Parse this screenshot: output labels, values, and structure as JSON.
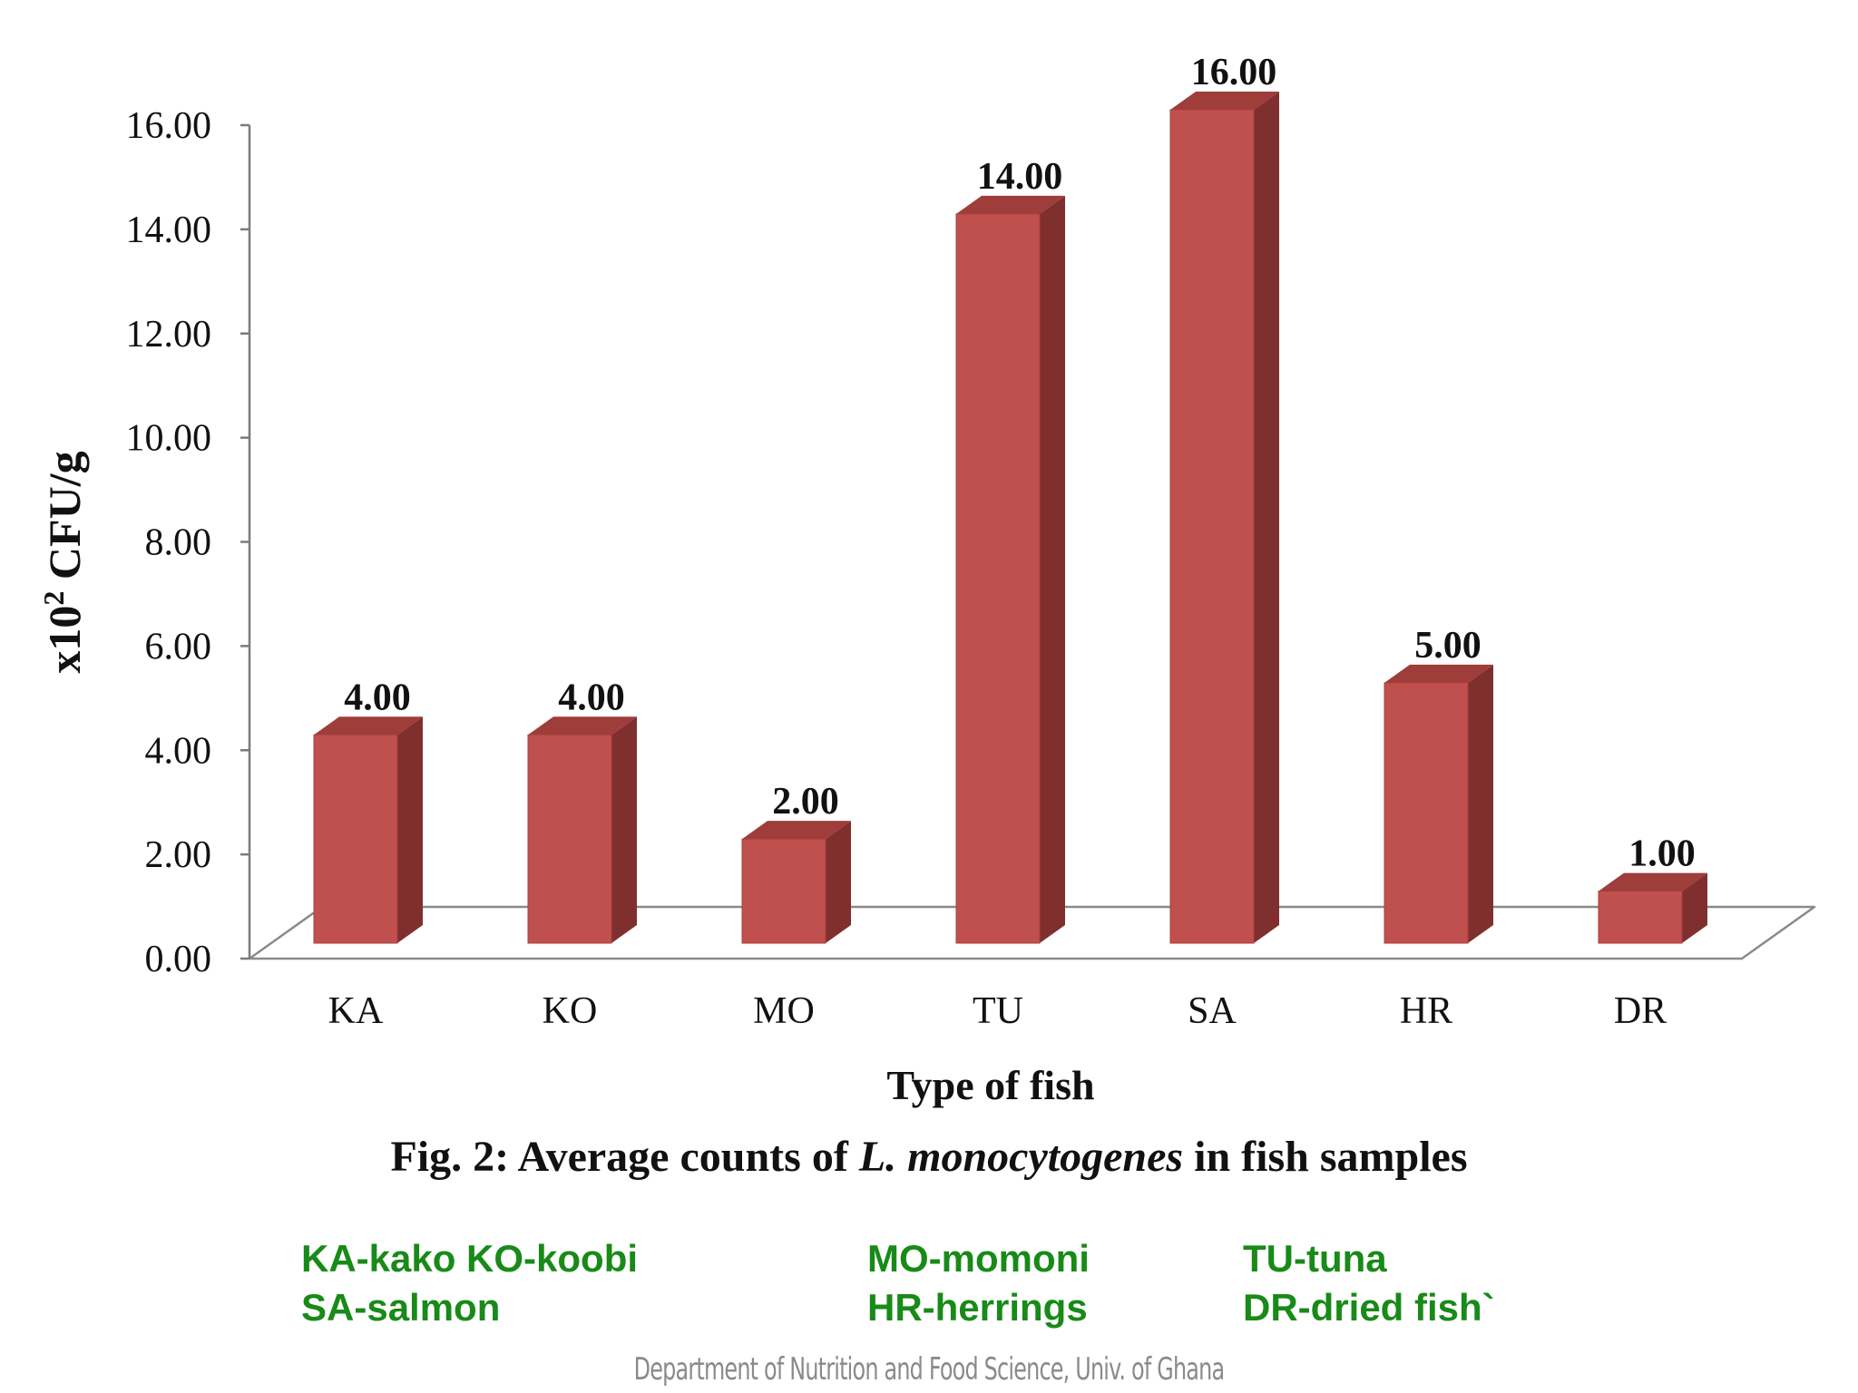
{
  "chart_data": {
    "type": "bar",
    "categories": [
      "KA",
      "KO",
      "MO",
      "TU",
      "SA",
      "HR",
      "DR"
    ],
    "values": [
      4.0,
      4.0,
      2.0,
      14.0,
      16.0,
      5.0,
      1.0
    ],
    "value_labels": [
      "4.00",
      "4.00",
      "2.00",
      "14.00",
      "16.00",
      "5.00",
      "1.00"
    ],
    "yticks": [
      "0.00",
      "2.00",
      "4.00",
      "6.00",
      "8.00",
      "10.00",
      "12.00",
      "14.00",
      "16.00"
    ],
    "ylim": [
      0,
      16
    ],
    "ylabel_prefix": "x10",
    "ylabel_exp": "2",
    "ylabel_suffix": " CFU/g",
    "xlabel": "Type of fish",
    "grid": false,
    "bar_color": "#c0504d",
    "bar_side_color": "#7f302e",
    "bar_top_color": "#9e3d3a"
  },
  "caption": {
    "prefix": "Fig. 2: Average counts of ",
    "italic": "L. monocytogenes",
    "suffix": " in fish samples"
  },
  "legend": [
    "KA-kako  KO-koobi",
    "MO-momoni",
    "TU-tuna",
    "SA-salmon",
    "HR-herrings",
    "DR-dried fish`"
  ],
  "footer": "Department of Nutrition and Food Science, Univ. of Ghana"
}
